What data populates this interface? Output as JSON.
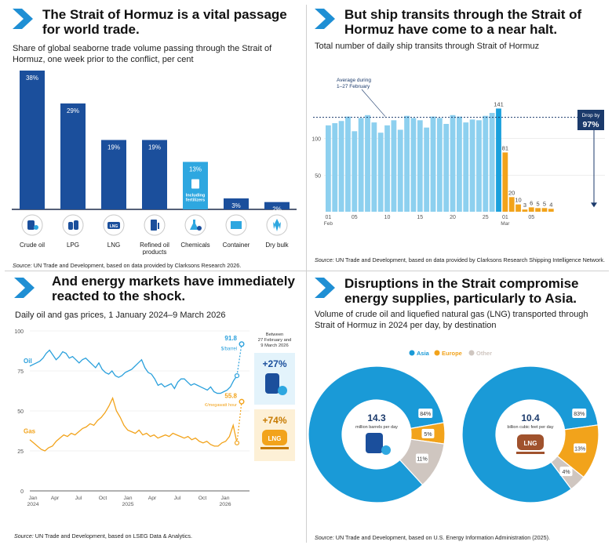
{
  "panel1": {
    "title": "The Strait of Hormuz is a vital passage for world trade.",
    "subtitle": "Share of global seaborne trade volume passing through the Strait of Hormuz, one week prior to the conflict, per cent",
    "source_label": "Source:",
    "source": "UN Trade and Development, based on data provided by Clarksons Research 2026.",
    "bar_color": "#1b4f9c",
    "highlight_color": "#2ea7e0",
    "chemicals_note": "Including fertilizers"
  },
  "panel2": {
    "title": "But ship transits through the Strait of Hormuz have come to a near halt.",
    "subtitle": "Total number of daily ship transits through Strait of Hormuz",
    "avg_label": "Average during 1–27 February",
    "avg_value": "129",
    "drop_label": "Drop by",
    "drop_value": "97%",
    "source_label": "Source:",
    "source": "UN Trade and Development, based on data provided by Clarksons Research Shipping Intelligence Network.",
    "light_color": "#8dd0ef",
    "dark_color": "#1aa0dc",
    "orange_color": "#f2a31b"
  },
  "panel3": {
    "title": "And energy markets have immediately reacted to the shock.",
    "subtitle": "Daily oil and gas prices, 1 January 2024–9 March 2026",
    "oil_label": "Oil",
    "gas_label": "Gas",
    "oil_end_value": "91.8",
    "oil_end_unit": "$/barrel",
    "gas_end_value": "55.8",
    "gas_end_unit": "€/megawatt hour",
    "between_label": "Between 27 February and 9 March 2026",
    "oil_change": "+27%",
    "gas_change": "+74%",
    "lng_label": "LNG",
    "source_label": "Source:",
    "source": "UN Trade and Development, based on LSEG Data & Analytics.",
    "oil_color": "#2aa0dc",
    "gas_color": "#f2a31b"
  },
  "panel4": {
    "title": "Disruptions in the Strait compromise energy supplies, particularly to Asia.",
    "subtitle": "Volume of crude oil and liquefied natural gas (LNG) transported through Strait of Hormuz in 2024 per day, by destination",
    "legend": [
      {
        "label": "Asia",
        "color": "#1a9ad7"
      },
      {
        "label": "Europe",
        "color": "#f2a31b"
      },
      {
        "label": "Other",
        "color": "#cfc6c0"
      }
    ],
    "source_label": "Source:",
    "source": "UN Trade and Development, based on U.S. Energy Information Administration (2025)."
  },
  "chart_data": [
    {
      "type": "bar",
      "categories": [
        "Crude oil",
        "LPG",
        "LNG",
        "Refined oil products",
        "Chemicals",
        "Container",
        "Dry bulk"
      ],
      "values": [
        38,
        29,
        19,
        19,
        13,
        3,
        2
      ],
      "labels": [
        "38%",
        "29%",
        "19%",
        "19%",
        "13%",
        "3%",
        "2%"
      ],
      "ylim": [
        0,
        40
      ]
    },
    {
      "type": "bar",
      "x_ticks": [
        "01",
        "05",
        "10",
        "15",
        "20",
        "25",
        "01",
        "05"
      ],
      "x_months": [
        "Feb",
        "Mar"
      ],
      "y_ticks": [
        "50",
        "100"
      ],
      "ylim": [
        0,
        150
      ],
      "february": [
        118,
        121,
        124,
        130,
        110,
        128,
        132,
        122,
        108,
        118,
        125,
        112,
        131,
        128,
        125,
        115,
        130,
        128,
        120,
        132,
        130,
        122,
        126,
        125,
        131,
        135,
        141
      ],
      "march": [
        81,
        20,
        10,
        3,
        6,
        5,
        5,
        4
      ],
      "labels": [
        {
          "i": 26,
          "text": "141"
        },
        {
          "i": 27,
          "text": "81"
        },
        {
          "i": 28,
          "text": "20"
        },
        {
          "i": 29,
          "text": "10"
        },
        {
          "i": 30,
          "text": "3"
        },
        {
          "i": 31,
          "text": "6"
        },
        {
          "i": 32,
          "text": "5"
        },
        {
          "i": 33,
          "text": "5"
        },
        {
          "i": 34,
          "text": "4"
        }
      ],
      "average": 129
    },
    {
      "type": "line",
      "y_ticks": [
        "0",
        "25",
        "50",
        "75",
        "100"
      ],
      "ylim": [
        0,
        100
      ],
      "x_ticks": [
        "Jan 2024",
        "Apr",
        "Jul",
        "Oct",
        "Jan 2025",
        "Apr",
        "Jul",
        "Oct",
        "Jan 2026"
      ],
      "series": [
        {
          "name": "Oil",
          "values": [
            78,
            79,
            80,
            81,
            83,
            86,
            88,
            85,
            82,
            84,
            87,
            86,
            83,
            84,
            82,
            80,
            82,
            83,
            81,
            79,
            77,
            80,
            76,
            74,
            73,
            75,
            72,
            71,
            72,
            74,
            75,
            76,
            78,
            80,
            82,
            77,
            74,
            73,
            70,
            66,
            67,
            65,
            66,
            67,
            64,
            68,
            70,
            70,
            68,
            66,
            67,
            66,
            65,
            64,
            63,
            65,
            62,
            61,
            61,
            62,
            63,
            65,
            69,
            72,
            91.8
          ]
        },
        {
          "name": "Gas",
          "values": [
            32,
            30,
            28,
            26,
            25,
            27,
            28,
            31,
            33,
            35,
            34,
            36,
            35,
            37,
            39,
            40,
            42,
            41,
            44,
            46,
            49,
            53,
            58,
            50,
            46,
            41,
            38,
            37,
            36,
            38,
            35,
            36,
            34,
            35,
            33,
            34,
            35,
            34,
            36,
            35,
            34,
            33,
            34,
            32,
            33,
            31,
            30,
            31,
            29,
            28,
            28,
            30,
            31,
            34,
            41,
            30,
            55.8
          ]
        }
      ]
    },
    {
      "type": "pie",
      "title": "Crude oil",
      "center_value": "14.3",
      "center_unit": "million barrels per day",
      "slices": [
        {
          "name": "Asia",
          "value": 84,
          "label": "84%"
        },
        {
          "name": "Europe",
          "value": 5,
          "label": "5%"
        },
        {
          "name": "Other",
          "value": 11,
          "label": "11%"
        }
      ]
    },
    {
      "type": "pie",
      "title": "Liquefied natural gas",
      "center_value": "10.4",
      "center_unit": "billion cubic feet per day",
      "slices": [
        {
          "name": "Asia",
          "value": 83,
          "label": "83%"
        },
        {
          "name": "Europe",
          "value": 13,
          "label": "13%"
        },
        {
          "name": "Other",
          "value": 4,
          "label": "4%"
        }
      ]
    }
  ]
}
